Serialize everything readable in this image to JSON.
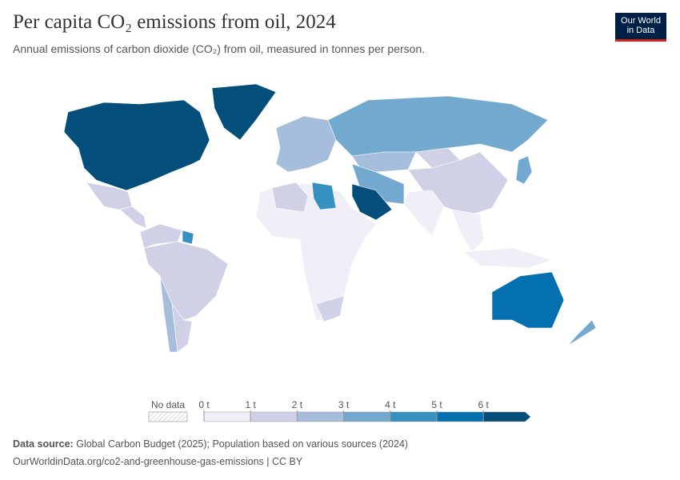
{
  "header": {
    "title": "Per capita CO₂ emissions from oil, 2024",
    "subtitle": "Annual emissions of carbon dioxide (CO₂) from oil, measured in tonnes per person.",
    "logo": [
      "Our World",
      "in Data"
    ]
  },
  "chart_data": {
    "type": "map",
    "values": [
      7.5,
      6.5,
      1.5,
      1.0,
      1.0,
      4.5,
      1.2,
      2.0,
      1.5,
      2.5,
      3.5,
      2.0,
      1.0,
      1.5,
      3.5,
      0.4,
      0.6,
      0.8,
      3.0,
      7.0,
      0.3,
      1.2,
      4.5,
      1.3,
      5.5,
      3.5
    ],
    "legend": {
      "no_data": "No data",
      "ticks": [
        {
          "value": 0,
          "label": "0 t"
        },
        {
          "value": 1,
          "label": "1 t"
        },
        {
          "value": 2,
          "label": "2 t"
        },
        {
          "value": 3,
          "label": "3 t"
        },
        {
          "value": 4,
          "label": "4 t"
        },
        {
          "value": 5,
          "label": "5 t"
        },
        {
          "value": 6,
          "label": "6 t"
        }
      ],
      "colors": [
        "#f0eef6",
        "#d0d1e6",
        "#a6bddb",
        "#74a9cf",
        "#3690c0",
        "#0570b0",
        "#034e7b"
      ]
    }
  },
  "footer": {
    "source_label": "Data source:",
    "source": "Global Carbon Budget (2025); Population based on various sources (2024)",
    "url": "OurWorldinData.org/co2-and-greenhouse-gas-emissions | CC BY"
  }
}
